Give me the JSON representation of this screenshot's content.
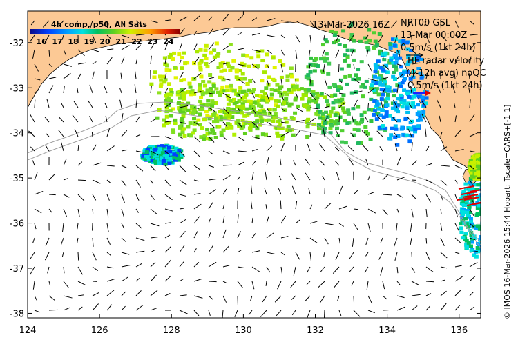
{
  "map": {
    "lon_range": [
      124,
      136.6
    ],
    "lat_range": [
      -38.1,
      -31.3
    ],
    "x_ticks": [
      "124",
      "126",
      "128",
      "130",
      "132",
      "134",
      "136"
    ],
    "x_tick_values": [
      124,
      126,
      128,
      130,
      132,
      134,
      136
    ],
    "y_ticks": [
      "-32",
      "-33",
      "-34",
      "-35",
      "-36",
      "-37",
      "-38"
    ],
    "y_tick_values": [
      -32,
      -33,
      -34,
      -35,
      -36,
      -37,
      -38
    ],
    "land_color": "#fcc995",
    "ocean_color": "#ffffff"
  },
  "legend": {
    "title": "4h comp, p50, All Sats",
    "ticks": [
      "16",
      "17",
      "18",
      "19",
      "20",
      "21",
      "22",
      "23",
      "24"
    ],
    "tick_values": [
      16,
      17,
      18,
      19,
      20,
      21,
      22,
      23,
      24
    ],
    "range": [
      15.3,
      24.7
    ],
    "colors": [
      "#0a0a8a",
      "#0040ff",
      "#00a0ff",
      "#00e0e0",
      "#00c060",
      "#60d020",
      "#d0f000",
      "#ffa000",
      "#e02000",
      "#8b0000"
    ]
  },
  "annotations": {
    "date": "13-Mar-2026 16Z",
    "nrt": "NRT00 GSL",
    "nrt_date": "13-Mar 00:00Z",
    "vec_scale": "0.5m/s (1kt 24h)",
    "hf_title": "HF radar velocity",
    "hf_sub": "(4-12h avg) noQC",
    "hf_scale": "0.5m/s (1kt 24h)"
  },
  "credit": "© IMOS 16-Mar-2026 15:44 Hobart; Tscale=CARS+[-1 1]"
}
